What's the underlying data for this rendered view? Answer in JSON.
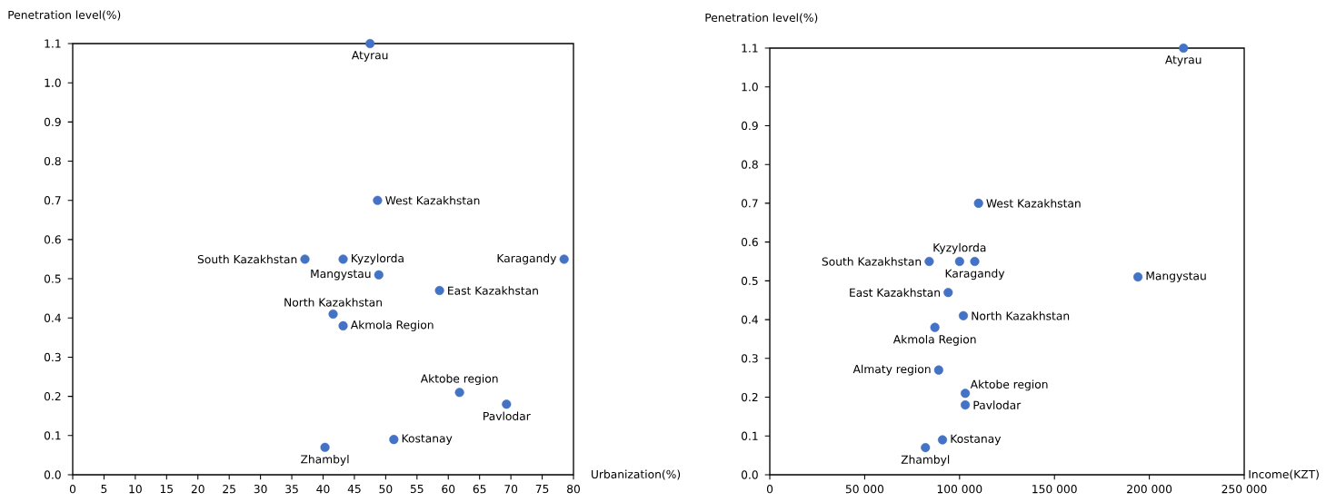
{
  "chart_data": [
    {
      "type": "scatter",
      "xlabel": "Urbanization(%)",
      "ylabel": "Penetration level(%)",
      "color": "#4472c4",
      "marker": "circle",
      "x": [
        47.5,
        48.7,
        37.1,
        43.2,
        78.5,
        48.9,
        58.6,
        41.6,
        43.2,
        61.8,
        69.3,
        51.3,
        40.3
      ],
      "values": [
        1.1,
        0.7,
        0.55,
        0.55,
        0.55,
        0.51,
        0.47,
        0.41,
        0.38,
        0.21,
        0.18,
        0.09,
        0.07
      ],
      "xlim": [
        0,
        80
      ],
      "xticks": [
        0,
        5,
        10,
        15,
        20,
        25,
        30,
        35,
        40,
        45,
        50,
        55,
        60,
        65,
        70,
        75,
        80
      ],
      "ylim": [
        0,
        1.1
      ],
      "yticks": [
        {
          "value": 0,
          "label": "0.0"
        },
        {
          "value": 0.1,
          "label": "0.1"
        },
        {
          "value": 0.2,
          "label": "0.2"
        },
        {
          "value": 0.3,
          "label": "0.3"
        },
        {
          "value": 0.4,
          "label": "0.4"
        },
        {
          "value": 0.5,
          "label": "0.5"
        },
        {
          "value": 0.6,
          "label": "0.6"
        },
        {
          "value": 0.7,
          "label": "0.7"
        },
        {
          "value": 0.8,
          "label": "0.8"
        },
        {
          "value": 0.9,
          "label": "0.9"
        },
        {
          "value": 1.0,
          "label": "1.0"
        },
        {
          "value": 1.1,
          "label": "1.1"
        }
      ],
      "annotations": [
        {
          "text": "Atyrau",
          "x": 47.5,
          "y": 1.1
        },
        {
          "text": "West Kazakhstan",
          "x": 48.7,
          "y": 0.7
        },
        {
          "text": "South Kazakhstan",
          "x": 37.1,
          "y": 0.55
        },
        {
          "text": "Kyzylorda",
          "x": 43.2,
          "y": 0.55
        },
        {
          "text": "Karagandy",
          "x": 78.5,
          "y": 0.55
        },
        {
          "text": "Mangystau",
          "x": 48.9,
          "y": 0.51
        },
        {
          "text": "East Kazakhstan",
          "x": 58.6,
          "y": 0.47
        },
        {
          "text": "North Kazakhstan",
          "x": 41.6,
          "y": 0.41
        },
        {
          "text": "Akmola Region",
          "x": 43.2,
          "y": 0.38
        },
        {
          "text": "Aktobe region",
          "x": 61.8,
          "y": 0.21
        },
        {
          "text": "Pavlodar",
          "x": 69.3,
          "y": 0.18
        },
        {
          "text": "Kostanay",
          "x": 51.3,
          "y": 0.09
        },
        {
          "text": "Zhambyl",
          "x": 40.3,
          "y": 0.07
        }
      ]
    },
    {
      "type": "scatter",
      "xlabel": "Income(KZT)",
      "ylabel": "Penetration level(%)",
      "color": "#4472c4",
      "marker": "circle",
      "x": [
        218000,
        110000,
        84000,
        100000,
        108000,
        194000,
        94000,
        102000,
        87000,
        89000,
        103000,
        103000,
        91000,
        82000
      ],
      "values": [
        1.1,
        0.7,
        0.55,
        0.55,
        0.55,
        0.51,
        0.47,
        0.41,
        0.38,
        0.27,
        0.21,
        0.18,
        0.09,
        0.07
      ],
      "xlim": [
        0,
        250000
      ],
      "xticks": [
        0,
        {
          "value": 50000,
          "label": "50 000"
        },
        {
          "value": 100000,
          "label": "100 000"
        },
        {
          "value": 150000,
          "label": "150 000"
        },
        {
          "value": 200000,
          "label": "200 000"
        },
        {
          "value": 250000,
          "label": "250 000"
        }
      ],
      "ylim": [
        0,
        1.1
      ],
      "yticks": [
        {
          "value": 0,
          "label": "0.0"
        },
        {
          "value": 0.1,
          "label": "0.1"
        },
        {
          "value": 0.2,
          "label": "0.2"
        },
        {
          "value": 0.3,
          "label": "0.3"
        },
        {
          "value": 0.4,
          "label": "0.4"
        },
        {
          "value": 0.5,
          "label": "0.5"
        },
        {
          "value": 0.6,
          "label": "0.6"
        },
        {
          "value": 0.7,
          "label": "0.7"
        },
        {
          "value": 0.8,
          "label": "0.8"
        },
        {
          "value": 0.9,
          "label": "0.9"
        },
        {
          "value": 1.0,
          "label": "1.0"
        },
        {
          "value": 1.1,
          "label": "1.1"
        }
      ],
      "annotations": [
        {
          "text": "Atyrau",
          "x": 218000,
          "y": 1.1
        },
        {
          "text": "West Kazakhstan",
          "x": 110000,
          "y": 0.7
        },
        {
          "text": "South Kazakhstan",
          "x": 84000,
          "y": 0.55
        },
        {
          "text": "Kyzylorda",
          "x": 100000,
          "y": 0.55
        },
        {
          "text": "Karagandy",
          "x": 108000,
          "y": 0.55
        },
        {
          "text": "Mangystau",
          "x": 194000,
          "y": 0.51
        },
        {
          "text": "East Kazakhstan",
          "x": 94000,
          "y": 0.47
        },
        {
          "text": "North Kazakhstan",
          "x": 102000,
          "y": 0.41
        },
        {
          "text": "Akmola Region",
          "x": 87000,
          "y": 0.38
        },
        {
          "text": "Almaty region",
          "x": 89000,
          "y": 0.27
        },
        {
          "text": "Aktobe region",
          "x": 103000,
          "y": 0.21
        },
        {
          "text": "Pavlodar",
          "x": 103000,
          "y": 0.18
        },
        {
          "text": "Kostanay",
          "x": 91000,
          "y": 0.09
        },
        {
          "text": "Zhambyl",
          "x": 82000,
          "y": 0.07
        }
      ]
    }
  ]
}
